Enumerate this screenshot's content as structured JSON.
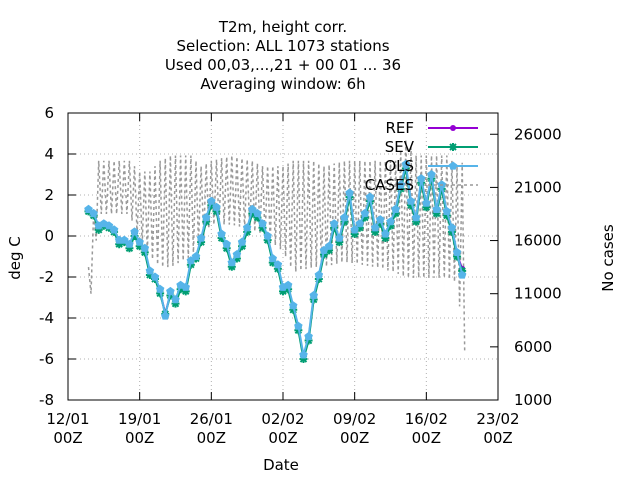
{
  "chart_data": {
    "type": "line",
    "title_lines": [
      "T2m, height corr.",
      "Selection: ALL    1073 stations",
      "Used  00,03,...,21  + 00 01 ... 36",
      "Averaging window:  6h"
    ],
    "xlabel": "Date",
    "ylabel": "deg C",
    "y2label": "No cases",
    "x_ticks": [
      {
        "x": 0,
        "label1": "12/01",
        "label2": "00Z"
      },
      {
        "x": 7,
        "label1": "19/01",
        "label2": "00Z"
      },
      {
        "x": 14,
        "label1": "26/01",
        "label2": "00Z"
      },
      {
        "x": 21,
        "label1": "02/02",
        "label2": "00Z"
      },
      {
        "x": 28,
        "label1": "09/02",
        "label2": "00Z"
      },
      {
        "x": 35,
        "label1": "16/02",
        "label2": "00Z"
      },
      {
        "x": 42,
        "label1": "23/02",
        "label2": "00Z"
      }
    ],
    "xlim": [
      0,
      42
    ],
    "ylim": [
      -8,
      6
    ],
    "y_ticks": [
      -8,
      -6,
      -4,
      -2,
      0,
      2,
      4,
      6
    ],
    "y2lim": [
      1000,
      28000
    ],
    "y2_ticks": [
      1000,
      6000,
      11000,
      16000,
      21000,
      26000
    ],
    "grid": true,
    "legend_position": "top-right",
    "colors": {
      "REF": "#9400d3",
      "SEV": "#009e73",
      "OLS": "#56b4e9",
      "CASES": "#999999"
    },
    "series": [
      {
        "name": "REF",
        "marker": "circle",
        "points": [
          [
            2,
            1.2
          ],
          [
            2.5,
            1.1
          ],
          [
            3,
            0.4
          ],
          [
            3.5,
            0.6
          ],
          [
            4,
            0.5
          ],
          [
            4.5,
            0.3
          ],
          [
            5,
            -0.3
          ],
          [
            5.5,
            -0.2
          ],
          [
            6,
            -0.5
          ],
          [
            6.5,
            0.1
          ],
          [
            7,
            -0.4
          ],
          [
            7.5,
            -0.7
          ],
          [
            8,
            -1.8
          ],
          [
            8.5,
            -2.0
          ],
          [
            9,
            -2.7
          ],
          [
            9.5,
            -3.8
          ],
          [
            10,
            -2.8
          ],
          [
            10.5,
            -3.2
          ],
          [
            11,
            -2.5
          ],
          [
            11.5,
            -2.6
          ],
          [
            12,
            -1.3
          ],
          [
            12.5,
            -1.0
          ],
          [
            13,
            -0.2
          ],
          [
            13.5,
            0.8
          ],
          [
            14,
            1.6
          ],
          [
            14.5,
            1.3
          ],
          [
            15,
            0.0
          ],
          [
            15.5,
            -0.5
          ],
          [
            16,
            -1.4
          ],
          [
            16.5,
            -1.0
          ],
          [
            17,
            -0.4
          ],
          [
            17.5,
            0.3
          ],
          [
            18,
            1.2
          ],
          [
            18.5,
            1.0
          ],
          [
            19,
            0.5
          ],
          [
            19.5,
            -0.1
          ],
          [
            20,
            -1.2
          ],
          [
            20.5,
            -1.5
          ],
          [
            21,
            -2.6
          ],
          [
            21.5,
            -2.5
          ],
          [
            22,
            -3.5
          ],
          [
            22.5,
            -4.5
          ],
          [
            23,
            -5.9
          ],
          [
            23.5,
            -5.0
          ],
          [
            24,
            -3.0
          ],
          [
            24.5,
            -2.0
          ],
          [
            25,
            -0.8
          ],
          [
            25.5,
            -0.6
          ],
          [
            26,
            0.5
          ],
          [
            26.5,
            -0.2
          ],
          [
            27,
            0.8
          ],
          [
            27.5,
            2.0
          ],
          [
            28,
            0.2
          ],
          [
            28.5,
            0.5
          ],
          [
            29,
            1.0
          ],
          [
            29.5,
            1.8
          ],
          [
            30,
            0.3
          ],
          [
            30.5,
            0.7
          ],
          [
            31,
            0.0
          ],
          [
            31.5,
            0.6
          ],
          [
            32,
            1.2
          ],
          [
            32.5,
            2.4
          ],
          [
            33,
            3.4
          ],
          [
            33.5,
            1.6
          ],
          [
            34,
            0.8
          ],
          [
            34.5,
            2.7
          ],
          [
            35,
            1.5
          ],
          [
            35.5,
            2.9
          ],
          [
            36,
            1.2
          ],
          [
            36.5,
            2.4
          ],
          [
            37,
            1.1
          ],
          [
            37.5,
            0.3
          ],
          [
            38,
            -0.9
          ],
          [
            38.5,
            -1.6
          ]
        ]
      },
      {
        "name": "SEV",
        "marker": "star",
        "points": [
          [
            2,
            1.2
          ],
          [
            2.5,
            1.0
          ],
          [
            3,
            0.3
          ],
          [
            3.5,
            0.5
          ],
          [
            4,
            0.4
          ],
          [
            4.5,
            0.2
          ],
          [
            5,
            -0.4
          ],
          [
            5.5,
            -0.3
          ],
          [
            6,
            -0.6
          ],
          [
            6.5,
            0.0
          ],
          [
            7,
            -0.5
          ],
          [
            7.5,
            -0.8
          ],
          [
            8,
            -1.9
          ],
          [
            8.5,
            -2.1
          ],
          [
            9,
            -2.8
          ],
          [
            9.5,
            -3.8
          ],
          [
            10,
            -2.9
          ],
          [
            10.5,
            -3.3
          ],
          [
            11,
            -2.6
          ],
          [
            11.5,
            -2.7
          ],
          [
            12,
            -1.4
          ],
          [
            12.5,
            -1.1
          ],
          [
            13,
            -0.3
          ],
          [
            13.5,
            0.7
          ],
          [
            14,
            1.5
          ],
          [
            14.5,
            1.2
          ],
          [
            15,
            -0.1
          ],
          [
            15.5,
            -0.6
          ],
          [
            16,
            -1.5
          ],
          [
            16.5,
            -1.1
          ],
          [
            17,
            -0.5
          ],
          [
            17.5,
            0.2
          ],
          [
            18,
            1.1
          ],
          [
            18.5,
            0.9
          ],
          [
            19,
            0.4
          ],
          [
            19.5,
            -0.2
          ],
          [
            20,
            -1.3
          ],
          [
            20.5,
            -1.6
          ],
          [
            21,
            -2.7
          ],
          [
            21.5,
            -2.6
          ],
          [
            22,
            -3.6
          ],
          [
            22.5,
            -4.6
          ],
          [
            23,
            -6.0
          ],
          [
            23.5,
            -5.1
          ],
          [
            24,
            -3.1
          ],
          [
            24.5,
            -2.1
          ],
          [
            25,
            -0.9
          ],
          [
            25.5,
            -0.7
          ],
          [
            26,
            0.4
          ],
          [
            26.5,
            -0.3
          ],
          [
            27,
            0.7
          ],
          [
            27.5,
            1.9
          ],
          [
            28,
            0.1
          ],
          [
            28.5,
            0.4
          ],
          [
            29,
            0.9
          ],
          [
            29.5,
            1.7
          ],
          [
            30,
            0.2
          ],
          [
            30.5,
            0.6
          ],
          [
            31,
            -0.1
          ],
          [
            31.5,
            0.5
          ],
          [
            32,
            1.1
          ],
          [
            32.5,
            2.3
          ],
          [
            33,
            3.3
          ],
          [
            33.5,
            1.5
          ],
          [
            34,
            0.7
          ],
          [
            34.5,
            2.6
          ],
          [
            35,
            1.4
          ],
          [
            35.5,
            2.8
          ],
          [
            36,
            1.1
          ],
          [
            36.5,
            2.3
          ],
          [
            37,
            1.0
          ],
          [
            37.5,
            0.2
          ],
          [
            38,
            -1.0
          ],
          [
            38.5,
            -1.7
          ]
        ]
      },
      {
        "name": "OLS",
        "marker": "pentagon",
        "points": [
          [
            2,
            1.3
          ],
          [
            2.5,
            1.1
          ],
          [
            3,
            0.5
          ],
          [
            3.5,
            0.6
          ],
          [
            4,
            0.5
          ],
          [
            4.5,
            0.3
          ],
          [
            5,
            -0.2
          ],
          [
            5.5,
            -0.2
          ],
          [
            6,
            -0.4
          ],
          [
            6.5,
            0.2
          ],
          [
            7,
            -0.3
          ],
          [
            7.5,
            -0.6
          ],
          [
            8,
            -1.7
          ],
          [
            8.5,
            -2.0
          ],
          [
            9,
            -2.6
          ],
          [
            9.5,
            -3.9
          ],
          [
            10,
            -2.7
          ],
          [
            10.5,
            -3.1
          ],
          [
            11,
            -2.4
          ],
          [
            11.5,
            -2.5
          ],
          [
            12,
            -1.2
          ],
          [
            12.5,
            -1.0
          ],
          [
            13,
            -0.1
          ],
          [
            13.5,
            0.9
          ],
          [
            14,
            1.7
          ],
          [
            14.5,
            1.4
          ],
          [
            15,
            0.1
          ],
          [
            15.5,
            -0.4
          ],
          [
            16,
            -1.3
          ],
          [
            16.5,
            -0.9
          ],
          [
            17,
            -0.3
          ],
          [
            17.5,
            0.4
          ],
          [
            18,
            1.3
          ],
          [
            18.5,
            1.1
          ],
          [
            19,
            0.6
          ],
          [
            19.5,
            0.0
          ],
          [
            20,
            -1.1
          ],
          [
            20.5,
            -1.4
          ],
          [
            21,
            -2.5
          ],
          [
            21.5,
            -2.4
          ],
          [
            22,
            -3.4
          ],
          [
            22.5,
            -4.4
          ],
          [
            23,
            -5.8
          ],
          [
            23.5,
            -4.9
          ],
          [
            24,
            -2.9
          ],
          [
            24.5,
            -1.9
          ],
          [
            25,
            -0.7
          ],
          [
            25.5,
            -0.5
          ],
          [
            26,
            0.6
          ],
          [
            26.5,
            -0.1
          ],
          [
            27,
            0.9
          ],
          [
            27.5,
            2.1
          ],
          [
            28,
            0.3
          ],
          [
            28.5,
            0.6
          ],
          [
            29,
            1.1
          ],
          [
            29.5,
            1.9
          ],
          [
            30,
            0.4
          ],
          [
            30.5,
            0.8
          ],
          [
            31,
            0.1
          ],
          [
            31.5,
            0.7
          ],
          [
            32,
            1.3
          ],
          [
            32.5,
            2.5
          ],
          [
            33,
            3.5
          ],
          [
            33.5,
            1.7
          ],
          [
            34,
            0.9
          ],
          [
            34.5,
            2.8
          ],
          [
            35,
            1.6
          ],
          [
            35.5,
            3.0
          ],
          [
            36,
            1.3
          ],
          [
            36.5,
            2.5
          ],
          [
            37,
            1.2
          ],
          [
            37.5,
            0.4
          ],
          [
            38,
            -0.8
          ],
          [
            38.5,
            -1.9
          ]
        ]
      },
      {
        "name": "CASES",
        "axis": "y2",
        "style": "dashed",
        "oscillation": {
          "x_start": 2,
          "x_end": 38.8,
          "step": 0.25,
          "high": [
            [
              2,
              13500
            ],
            [
              3,
              23500
            ],
            [
              6,
              23500
            ],
            [
              7,
              22500
            ],
            [
              8,
              22500
            ],
            [
              9,
              23500
            ],
            [
              10,
              24000
            ],
            [
              12,
              24000
            ],
            [
              13,
              23000
            ],
            [
              14,
              23500
            ],
            [
              16,
              24000
            ],
            [
              18,
              23500
            ],
            [
              19,
              23000
            ],
            [
              21,
              23000
            ],
            [
              22,
              23500
            ],
            [
              24,
              23500
            ],
            [
              25,
              23000
            ],
            [
              27,
              23500
            ],
            [
              30,
              23500
            ],
            [
              32,
              23500
            ],
            [
              33,
              25500
            ],
            [
              34,
              24000
            ],
            [
              36,
              24000
            ],
            [
              37,
              24000
            ],
            [
              38,
              23000
            ],
            [
              38.8,
              23500
            ]
          ],
          "low": [
            [
              2,
              8500
            ],
            [
              3,
              18500
            ],
            [
              6,
              18500
            ],
            [
              7,
              16000
            ],
            [
              8,
              14500
            ],
            [
              9,
              13500
            ],
            [
              10,
              13500
            ],
            [
              12,
              14500
            ],
            [
              13,
              16000
            ],
            [
              14,
              17500
            ],
            [
              16,
              17500
            ],
            [
              18,
              17000
            ],
            [
              19,
              16500
            ],
            [
              21,
              15000
            ],
            [
              22,
              13000
            ],
            [
              24,
              13500
            ],
            [
              25,
              13500
            ],
            [
              27,
              14000
            ],
            [
              30,
              13500
            ],
            [
              32,
              13000
            ],
            [
              33,
              12500
            ],
            [
              34,
              12500
            ],
            [
              36,
              12500
            ],
            [
              37,
              12500
            ],
            [
              38,
              12000
            ],
            [
              38.8,
              5000
            ]
          ]
        }
      }
    ]
  }
}
